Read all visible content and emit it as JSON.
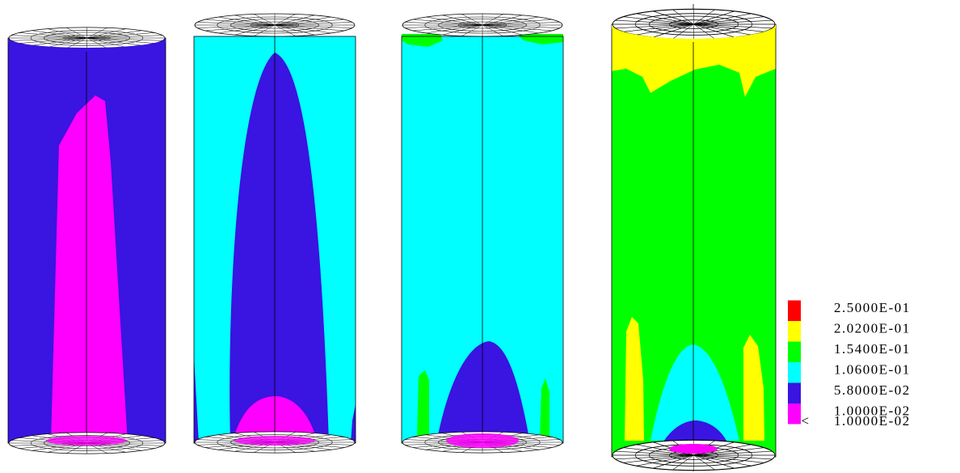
{
  "legend": {
    "entries": [
      {
        "label": "2.5000E-01",
        "color": "#ff0000"
      },
      {
        "label": "2.0200E-01",
        "color": "#ffff00"
      },
      {
        "label": "1.5400E-01",
        "color": "#00ff00"
      },
      {
        "label": "1.0600E-01",
        "color": "#00ffff"
      },
      {
        "label": "5.8000E-02",
        "color": "#3a14e0"
      },
      {
        "label": "1.0000E-02",
        "color": "#ff00ff"
      },
      {
        "label": "1.0000E-02",
        "prefix": "<"
      }
    ]
  }
}
